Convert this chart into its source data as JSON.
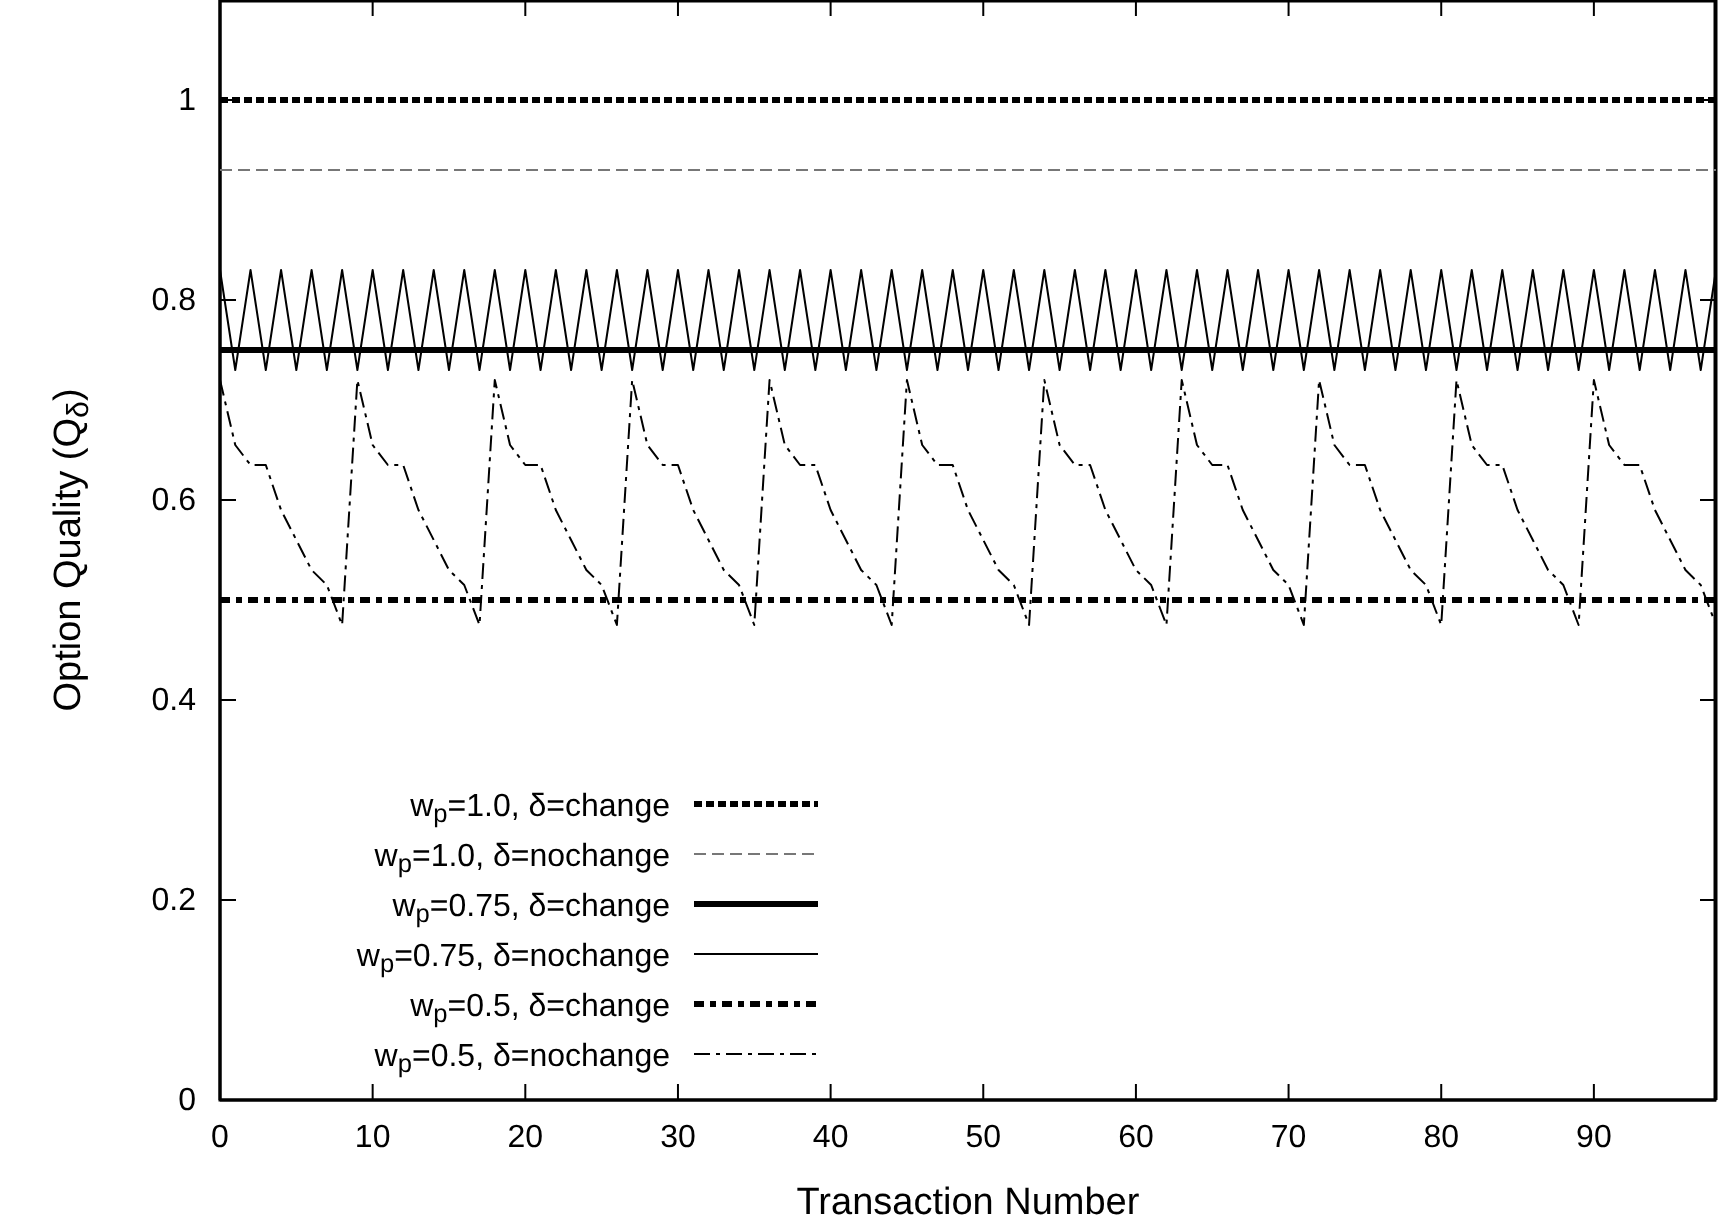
{
  "chart_data": {
    "type": "line",
    "xlabel": "Transaction Number",
    "ylabel": "Option Quality (Q$_{δ}$)",
    "xlim": [
      0,
      98
    ],
    "ylim": [
      0,
      1.1
    ],
    "xticks": [
      0,
      10,
      20,
      30,
      40,
      50,
      60,
      70,
      80,
      90
    ],
    "yticks": [
      0,
      0.2,
      0.4,
      0.6,
      0.8,
      1
    ],
    "legend": "bottom left",
    "grid": false,
    "series": [
      {
        "name": "w$_{p}$=1.0, δ=change",
        "color": "#000000",
        "line_style": "dashed",
        "x": [
          0,
          98
        ],
        "values": [
          1,
          1
        ]
      },
      {
        "name": "w$_{p}$=1.0, δ=nochange",
        "color": "#777777",
        "line_style": "dashed",
        "x": [
          0,
          98
        ],
        "values": [
          0.93,
          0.93
        ]
      },
      {
        "name": "w$_{p}$=0.75, δ=change",
        "color": "#000000",
        "line_style": "solid",
        "x": [
          0,
          98
        ],
        "values": [
          0.75,
          0.75
        ]
      },
      {
        "name": "w$_{p}$=0.75, δ=nochange",
        "color": "#000000",
        "line_style": "solid",
        "x": [
          0,
          1,
          2,
          3,
          4,
          5,
          6,
          7,
          8,
          9,
          10,
          11,
          12,
          13,
          14,
          15,
          16,
          17,
          18,
          19,
          20,
          21,
          22,
          23,
          24,
          25,
          26,
          27,
          28,
          29,
          30,
          31,
          32,
          33,
          34,
          35,
          36,
          37,
          38,
          39,
          40,
          41,
          42,
          43,
          44,
          45,
          46,
          47,
          48,
          49,
          50,
          51,
          52,
          53,
          54,
          55,
          56,
          57,
          58,
          59,
          60,
          61,
          62,
          63,
          64,
          65,
          66,
          67,
          68,
          69,
          70,
          71,
          72,
          73,
          74,
          75,
          76,
          77,
          78,
          79,
          80,
          81,
          82,
          83,
          84,
          85,
          86,
          87,
          88,
          89,
          90,
          91,
          92,
          93,
          94,
          95,
          96,
          97,
          98
        ],
        "values": [
          0.83,
          0.73,
          0.83,
          0.73,
          0.83,
          0.73,
          0.83,
          0.73,
          0.83,
          0.73,
          0.83,
          0.73,
          0.83,
          0.73,
          0.83,
          0.73,
          0.83,
          0.73,
          0.83,
          0.73,
          0.83,
          0.73,
          0.83,
          0.73,
          0.83,
          0.73,
          0.83,
          0.73,
          0.83,
          0.73,
          0.83,
          0.73,
          0.83,
          0.73,
          0.83,
          0.73,
          0.83,
          0.73,
          0.83,
          0.73,
          0.83,
          0.73,
          0.83,
          0.73,
          0.83,
          0.73,
          0.83,
          0.73,
          0.83,
          0.73,
          0.83,
          0.73,
          0.83,
          0.73,
          0.83,
          0.73,
          0.83,
          0.73,
          0.83,
          0.73,
          0.83,
          0.73,
          0.83,
          0.73,
          0.83,
          0.73,
          0.83,
          0.73,
          0.83,
          0.73,
          0.83,
          0.73,
          0.83,
          0.73,
          0.83,
          0.73,
          0.83,
          0.73,
          0.83,
          0.73,
          0.83,
          0.73,
          0.83,
          0.73,
          0.83,
          0.73,
          0.83,
          0.73,
          0.83,
          0.73,
          0.83,
          0.73,
          0.83,
          0.73,
          0.83,
          0.73,
          0.83,
          0.73,
          0.83
        ]
      },
      {
        "name": "w$_{p}$=0.5, δ=change",
        "color": "#000000",
        "line_style": "dashdot",
        "x": [
          0,
          98
        ],
        "values": [
          0.5,
          0.5
        ]
      },
      {
        "name": "w$_{p}$=0.5, δ=nochange",
        "color": "#000000",
        "line_style": "dashdot",
        "x": [
          0,
          1,
          2,
          3,
          4,
          5,
          6,
          7,
          8,
          9,
          10,
          11,
          12,
          13,
          14,
          15,
          16,
          17,
          18,
          19,
          20,
          21,
          22,
          23,
          24,
          25,
          26,
          27,
          28,
          29,
          30,
          31,
          32,
          33,
          34,
          35,
          36,
          37,
          38,
          39,
          40,
          41,
          42,
          43,
          44,
          45,
          46,
          47,
          48,
          49,
          50,
          51,
          52,
          53,
          54,
          55,
          56,
          57,
          58,
          59,
          60,
          61,
          62,
          63,
          64,
          65,
          66,
          67,
          68,
          69,
          70,
          71,
          72,
          73,
          74,
          75,
          76,
          77,
          78,
          79,
          80,
          81,
          82,
          83,
          84,
          85,
          86,
          87,
          88,
          89,
          90,
          91,
          92,
          93,
          94,
          95,
          96,
          97,
          98
        ],
        "values": [
          0.72,
          0.655,
          0.635,
          0.635,
          0.59,
          0.56,
          0.53,
          0.515,
          0.475,
          0.72,
          0.655,
          0.635,
          0.635,
          0.59,
          0.56,
          0.53,
          0.515,
          0.475,
          0.72,
          0.655,
          0.635,
          0.635,
          0.59,
          0.56,
          0.53,
          0.515,
          0.475,
          0.72,
          0.655,
          0.635,
          0.635,
          0.59,
          0.56,
          0.53,
          0.515,
          0.475,
          0.72,
          0.655,
          0.635,
          0.635,
          0.59,
          0.56,
          0.53,
          0.515,
          0.475,
          0.72,
          0.655,
          0.635,
          0.635,
          0.59,
          0.56,
          0.53,
          0.515,
          0.475,
          0.72,
          0.655,
          0.635,
          0.635,
          0.59,
          0.56,
          0.53,
          0.515,
          0.475,
          0.72,
          0.655,
          0.635,
          0.635,
          0.59,
          0.56,
          0.53,
          0.515,
          0.475,
          0.72,
          0.655,
          0.635,
          0.635,
          0.59,
          0.56,
          0.53,
          0.515,
          0.475,
          0.72,
          0.655,
          0.635,
          0.635,
          0.59,
          0.56,
          0.53,
          0.515,
          0.475,
          0.72,
          0.655,
          0.635,
          0.635,
          0.59,
          0.56,
          0.53,
          0.515,
          0.475
        ]
      }
    ]
  }
}
